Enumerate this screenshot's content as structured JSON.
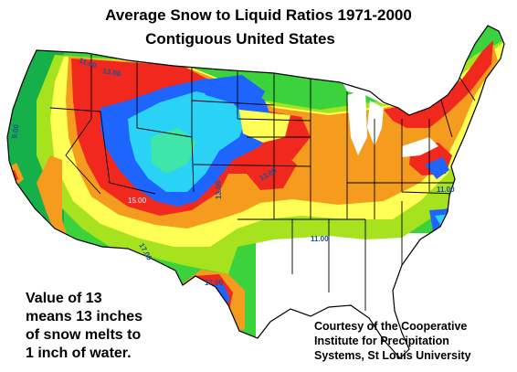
{
  "title": {
    "line1": "Average Snow to Liquid Ratios 1971-2000",
    "line2": "Contiguous United States"
  },
  "note": {
    "line1": "Value of 13",
    "line2": "means 13 inches",
    "line3": "of snow melts to",
    "line4": "1 inch of water."
  },
  "credit": {
    "line1": "Courtesy of the Cooperative",
    "line2": "Institute for Precipitation",
    "line3": "Systems, St Louis University"
  },
  "contour_labels": [
    "9.00",
    "11.00",
    "13.00",
    "13.00",
    "11.00",
    "15.00",
    "13.00",
    "17.00",
    "17.00",
    "11.00"
  ],
  "colors": {
    "dark_green": "#16b04a",
    "green": "#3cd23c",
    "lime": "#a6e21e",
    "yellow": "#ffff55",
    "orange": "#f59b1e",
    "red": "#f0281e",
    "blue": "#1e64ff",
    "cyan": "#2ad2f5",
    "light_green_cyan": "#3ee6aa",
    "border": "#000000"
  }
}
